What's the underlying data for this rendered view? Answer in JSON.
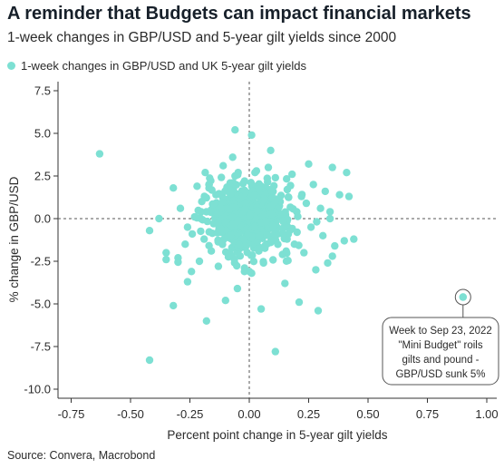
{
  "header": {
    "title": "A reminder that Budgets can impact financial markets",
    "subtitle": "1-week changes in GBP/USD and 5-year gilt yields since 2000"
  },
  "legend": {
    "label": "1-week changes in GBP/USD and UK 5-year gilt yields"
  },
  "footer": {
    "source": "Source: Convera, Macrobond"
  },
  "colors": {
    "points": "#7de0d3",
    "axis": "#333333",
    "zero_line": "#555555"
  },
  "chart_data": {
    "type": "scatter",
    "title": "A reminder that Budgets can impact financial markets",
    "subtitle": "1-week changes in GBP/USD and 5-year gilt yields since 2000",
    "xlabel": "Percent point change in 5-year gilt yields",
    "ylabel": "% change in GBP/USD",
    "xlim": [
      -0.8,
      1.02
    ],
    "ylim": [
      -10.3,
      8.0
    ],
    "xticks": [
      -0.75,
      -0.5,
      -0.25,
      0.0,
      0.25,
      0.5,
      0.75,
      1.0
    ],
    "xtick_labels": [
      "-0.75",
      "-0.50",
      "-0.25",
      "0.00",
      "0.25",
      "0.50",
      "0.75",
      "1.00"
    ],
    "yticks": [
      7.5,
      5.0,
      2.5,
      0.0,
      -2.5,
      -5.0,
      -7.5,
      -10.0
    ],
    "ytick_labels": [
      "7.5",
      "5.0",
      "2.5",
      "0.0",
      "-2.5",
      "-5.0",
      "-7.5",
      "-10.0"
    ],
    "grid": false,
    "zero_lines": true,
    "legend_position": "top-left",
    "series": [
      {
        "name": "1-week changes in GBP/USD and UK 5-year gilt yields",
        "points": [
          [
            -0.63,
            3.8
          ],
          [
            -0.42,
            -8.3
          ],
          [
            -0.42,
            -0.7
          ],
          [
            -0.38,
            0.0
          ],
          [
            -0.35,
            -2.0
          ],
          [
            -0.35,
            -2.4
          ],
          [
            -0.32,
            1.8
          ],
          [
            -0.32,
            -5.1
          ],
          [
            -0.29,
            0.6
          ],
          [
            -0.27,
            -1.5
          ],
          [
            -0.26,
            -3.7
          ],
          [
            -0.24,
            -0.9
          ],
          [
            -0.23,
            0.1
          ],
          [
            -0.22,
            1.9
          ],
          [
            -0.21,
            -2.5
          ],
          [
            -0.2,
            1.0
          ],
          [
            -0.19,
            -1.2
          ],
          [
            -0.18,
            0.4
          ],
          [
            -0.17,
            2.0
          ],
          [
            -0.16,
            -1.9
          ],
          [
            -0.15,
            -0.3
          ],
          [
            -0.14,
            1.4
          ],
          [
            -0.13,
            -2.8
          ],
          [
            -0.12,
            0.7
          ],
          [
            -0.11,
            3.1
          ],
          [
            -0.1,
            -1.0
          ],
          [
            -0.09,
            1.6
          ],
          [
            -0.08,
            -2.2
          ],
          [
            -0.08,
            0.2
          ],
          [
            -0.07,
            3.6
          ],
          [
            -0.06,
            -0.6
          ],
          [
            -0.06,
            2.5
          ],
          [
            -0.05,
            -4.1
          ],
          [
            -0.04,
            1.1
          ],
          [
            -0.04,
            -1.6
          ],
          [
            -0.03,
            0.5
          ],
          [
            -0.02,
            -2.9
          ],
          [
            -0.02,
            2.2
          ],
          [
            -0.01,
            -0.2
          ],
          [
            0.0,
            1.5
          ],
          [
            0.0,
            -1.1
          ],
          [
            0.01,
            4.9
          ],
          [
            0.01,
            -3.2
          ],
          [
            0.02,
            0.8
          ],
          [
            0.03,
            -0.8
          ],
          [
            0.03,
            2.8
          ],
          [
            0.04,
            -1.9
          ],
          [
            0.05,
            0.3
          ],
          [
            0.05,
            1.9
          ],
          [
            0.06,
            -2.6
          ],
          [
            0.07,
            -0.4
          ],
          [
            0.08,
            1.2
          ],
          [
            0.08,
            3.0
          ],
          [
            0.09,
            -1.4
          ],
          [
            0.1,
            0.6
          ],
          [
            0.11,
            -7.8
          ],
          [
            0.11,
            2.4
          ],
          [
            0.12,
            -0.9
          ],
          [
            0.13,
            1.0
          ],
          [
            0.14,
            -2.1
          ],
          [
            0.15,
            0.1
          ],
          [
            0.16,
            1.7
          ],
          [
            0.17,
            -0.7
          ],
          [
            0.18,
            2.6
          ],
          [
            0.19,
            -1.5
          ],
          [
            0.2,
            0.4
          ],
          [
            0.21,
            -4.9
          ],
          [
            0.22,
            1.3
          ],
          [
            0.23,
            -2.0
          ],
          [
            0.24,
            0.9
          ],
          [
            0.25,
            3.2
          ],
          [
            0.26,
            -0.5
          ],
          [
            0.27,
            2.0
          ],
          [
            0.28,
            -3.0
          ],
          [
            0.3,
            0.6
          ],
          [
            0.31,
            -1.0
          ],
          [
            0.32,
            1.6
          ],
          [
            0.33,
            -2.6
          ],
          [
            0.34,
            0.0
          ],
          [
            0.35,
            3.0
          ],
          [
            0.36,
            -1.6
          ],
          [
            0.38,
            1.4
          ],
          [
            0.4,
            -1.3
          ],
          [
            0.41,
            2.7
          ],
          [
            0.42,
            1.3
          ],
          [
            0.44,
            -1.2
          ],
          [
            -0.06,
            5.2
          ],
          [
            0.05,
            -5.3
          ],
          [
            -0.18,
            -6.0
          ],
          [
            -0.26,
            -0.5
          ],
          [
            -0.3,
            -2.3
          ],
          [
            0.15,
            -3.8
          ],
          [
            0.09,
            4.0
          ],
          [
            -0.1,
            -4.8
          ],
          [
            0.29,
            -5.4
          ],
          [
            0.35,
            -2.2
          ],
          [
            0.9,
            -4.6
          ]
        ]
      }
    ],
    "annotations": [
      {
        "point": [
          0.9,
          -4.6
        ],
        "lines": [
          "Week to Sep 23, 2022",
          "\"Mini Budget\" roils",
          "gilts and pound -",
          "GBP/USD sunk 5%"
        ]
      }
    ]
  }
}
